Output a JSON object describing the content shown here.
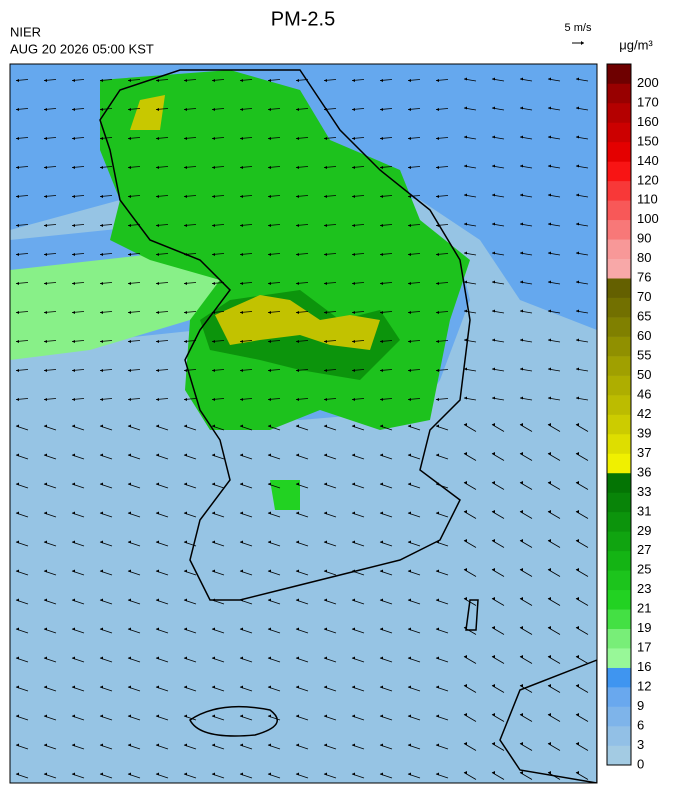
{
  "header": {
    "title": "PM-2.5",
    "agency": "NIER",
    "timestamp": "AUG 20 2026 05:00 KST",
    "wind_scale": "5 m/s"
  },
  "colorbar": {
    "unit": "μg/m³",
    "labels": [
      0,
      3,
      6,
      9,
      12,
      16,
      17,
      19,
      21,
      23,
      25,
      27,
      29,
      31,
      33,
      36,
      37,
      39,
      42,
      46,
      50,
      55,
      60,
      65,
      70,
      76,
      80,
      90,
      100,
      110,
      120,
      140,
      150,
      160,
      170,
      200
    ],
    "colors": [
      "#a3cbe3",
      "#92c0e6",
      "#7eb4ea",
      "#69a8ee",
      "#3f95f0",
      "#98f898",
      "#78ee78",
      "#44e044",
      "#22d222",
      "#1cc41c",
      "#14b414",
      "#10a410",
      "#0c940c",
      "#088408",
      "#047404",
      "#f0f000",
      "#dede00",
      "#cccc00",
      "#bcbc00",
      "#aeae00",
      "#a0a000",
      "#909000",
      "#808000",
      "#727000",
      "#646000",
      "#f8a8a8",
      "#f89898",
      "#f87878",
      "#f85858",
      "#f83838",
      "#f81414",
      "#e40000",
      "#cc0000",
      "#b40000",
      "#980000",
      "#6e0000"
    ]
  }
}
